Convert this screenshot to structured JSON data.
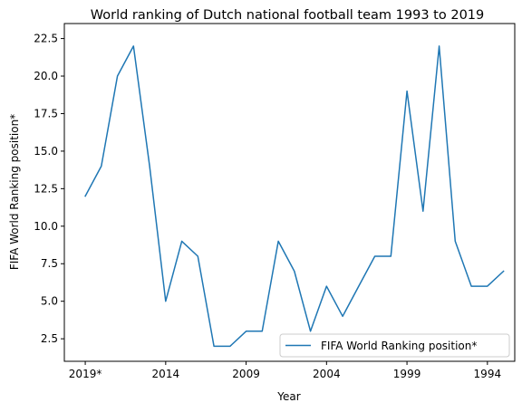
{
  "chart_data": {
    "type": "line",
    "title": "World ranking of Dutch national football team 1993 to 2019",
    "xlabel": "Year",
    "ylabel": "FIFA World Ranking position*",
    "x": [
      2019,
      2018,
      2017,
      2016,
      2015,
      2014,
      2013,
      2012,
      2011,
      2010,
      2009,
      2008,
      2007,
      2006,
      2005,
      2004,
      2003,
      2002,
      2001,
      2000,
      1999,
      1998,
      1997,
      1996,
      1995,
      1994,
      1993
    ],
    "x_reversed": true,
    "xlim": [
      2020.3,
      1992.3
    ],
    "xticks": [
      {
        "value": 2019,
        "label": "2019*"
      },
      {
        "value": 2014,
        "label": "2014"
      },
      {
        "value": 2009,
        "label": "2009"
      },
      {
        "value": 2004,
        "label": "2004"
      },
      {
        "value": 1999,
        "label": "1999"
      },
      {
        "value": 1994,
        "label": "1994"
      }
    ],
    "ylim": [
      1.0,
      23.5
    ],
    "yticks": [
      "2.5",
      "5.0",
      "7.5",
      "10.0",
      "12.5",
      "15.0",
      "17.5",
      "20.0",
      "22.5"
    ],
    "series": [
      {
        "name": "FIFA World Ranking position*",
        "color": "#1f77b4",
        "values": [
          12,
          14,
          20,
          22,
          14,
          5,
          9,
          8,
          2,
          2,
          3,
          3,
          9,
          7,
          3,
          6,
          4,
          6,
          8,
          8,
          19,
          11,
          22,
          9,
          6,
          6,
          7
        ]
      }
    ],
    "legend_position": "lower-right",
    "grid": false
  }
}
